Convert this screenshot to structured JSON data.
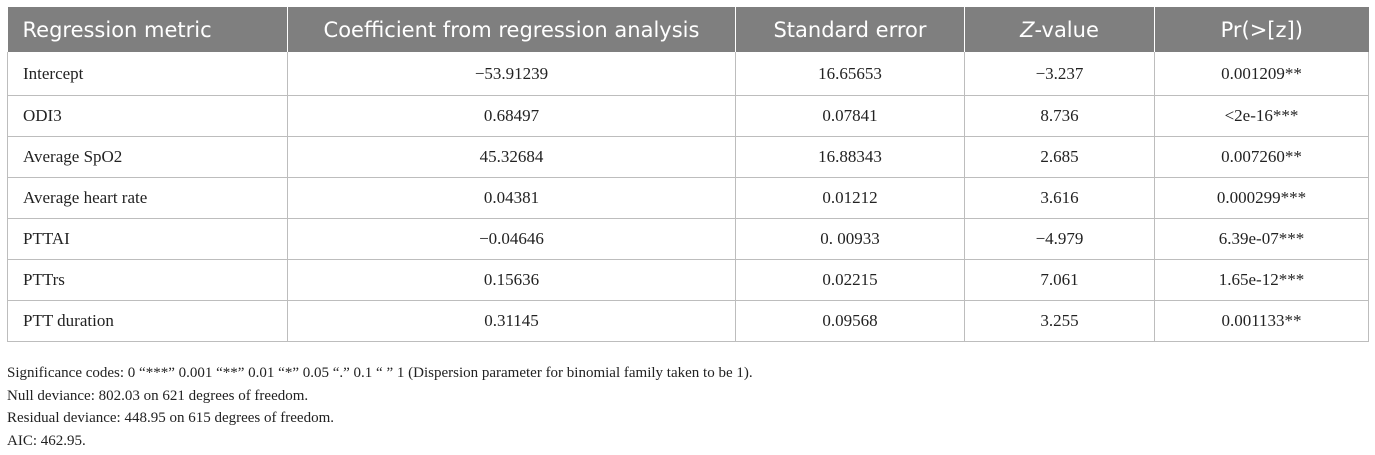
{
  "table": {
    "headers": {
      "metric": "Regression metric",
      "coefficient": "Coefficient from regression analysis",
      "std_error": "Standard error",
      "z_prefix": "Z",
      "z_suffix": "-value",
      "pr": "Pr(>[z])"
    },
    "rows": [
      {
        "metric": "Intercept",
        "coefficient": "−53.91239",
        "std_error": "16.65653",
        "z_value": "−3.237",
        "pr": "0.001209**"
      },
      {
        "metric": "ODI3",
        "coefficient": "0.68497",
        "std_error": "0.07841",
        "z_value": "8.736",
        "pr": "<2e-16***"
      },
      {
        "metric": "Average SpO2",
        "coefficient": "45.32684",
        "std_error": "16.88343",
        "z_value": "2.685",
        "pr": "0.007260**"
      },
      {
        "metric": "Average heart rate",
        "coefficient": "0.04381",
        "std_error": "0.01212",
        "z_value": "3.616",
        "pr": "0.000299***"
      },
      {
        "metric": "PTTAI",
        "coefficient": "−0.04646",
        "std_error": "0. 00933",
        "z_value": "−4.979",
        "pr": "6.39e-07***"
      },
      {
        "metric": "PTTrs",
        "coefficient": "0.15636",
        "std_error": "0.02215",
        "z_value": "7.061",
        "pr": "1.65e-12***"
      },
      {
        "metric": "PTT duration",
        "coefficient": "0.31145",
        "std_error": "0.09568",
        "z_value": "3.255",
        "pr": "0.001133**"
      }
    ]
  },
  "notes": {
    "significance": "Significance codes: 0 “***” 0.001 “**” 0.01 “*” 0.05 “.” 0.1 “ ” 1 (Dispersion parameter for binomial family taken to be 1).",
    "null_deviance": "Null deviance: 802.03 on 621 degrees of freedom.",
    "residual_deviance": "Residual deviance: 448.95 on 615 degrees of freedom.",
    "aic": "AIC: 462.95."
  },
  "colors": {
    "header_bg": "#7f7f7f",
    "header_text": "#ffffff",
    "border": "#bdbdbd"
  }
}
